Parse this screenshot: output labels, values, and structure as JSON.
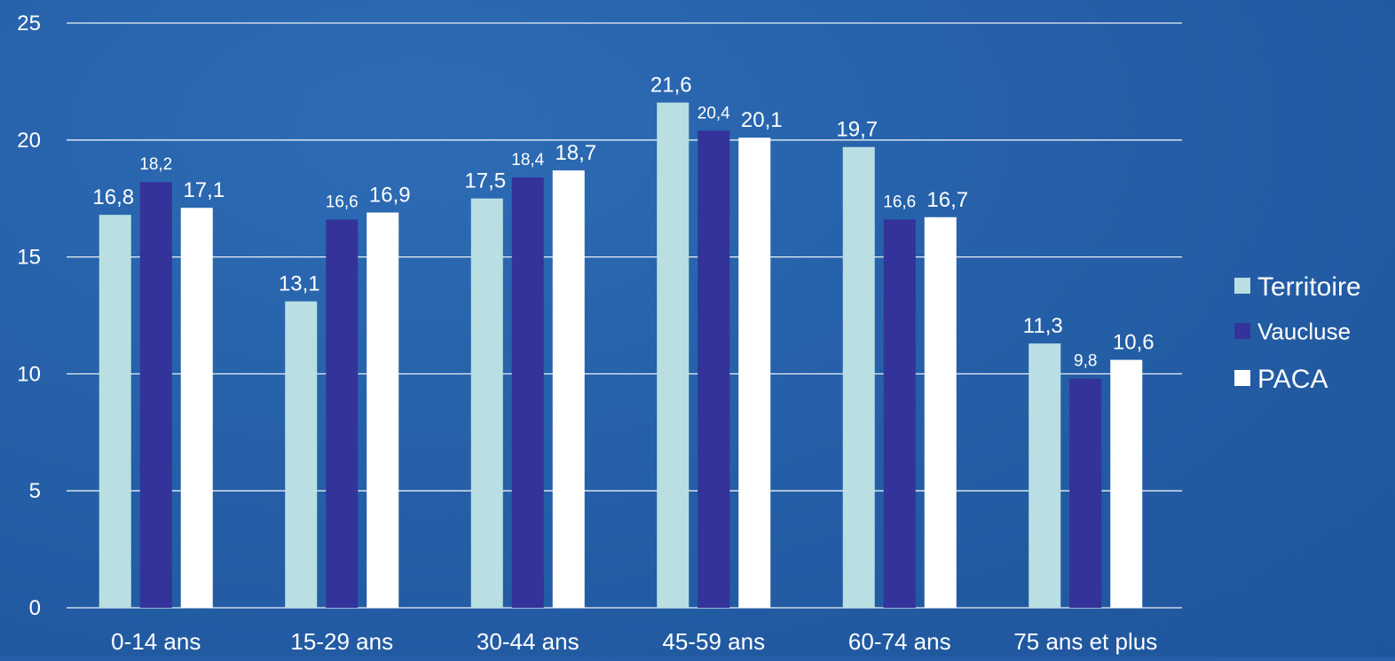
{
  "chart_data": {
    "type": "bar",
    "categories": [
      "0-14 ans",
      "15-29 ans",
      "30-44 ans",
      "45-59 ans",
      "60-74 ans",
      "75 ans et plus"
    ],
    "series": [
      {
        "name": "Territoire",
        "values": [
          16.8,
          13.1,
          17.5,
          21.6,
          19.7,
          11.3
        ],
        "labels": [
          "16,8",
          "13,1",
          "17,5",
          "21,6",
          "19,7",
          "11,3"
        ],
        "color": "#b9dfe3"
      },
      {
        "name": "Vaucluse",
        "values": [
          18.2,
          16.6,
          18.4,
          20.4,
          16.6,
          9.8
        ],
        "labels": [
          "18,2",
          "16,6",
          "18,4",
          "20,4",
          "16,6",
          "9,8"
        ],
        "color": "#33339a"
      },
      {
        "name": "PACA",
        "values": [
          17.1,
          16.9,
          18.7,
          20.1,
          16.7,
          10.6
        ],
        "labels": [
          "17,1",
          "16,9",
          "18,7",
          "20,1",
          "16,7",
          "10,6"
        ],
        "color": "#ffffff"
      }
    ],
    "yticks": [
      "0",
      "5",
      "10",
      "15",
      "20",
      "25"
    ],
    "ylim": [
      0,
      25
    ],
    "grid": true,
    "legend_position": "right"
  }
}
